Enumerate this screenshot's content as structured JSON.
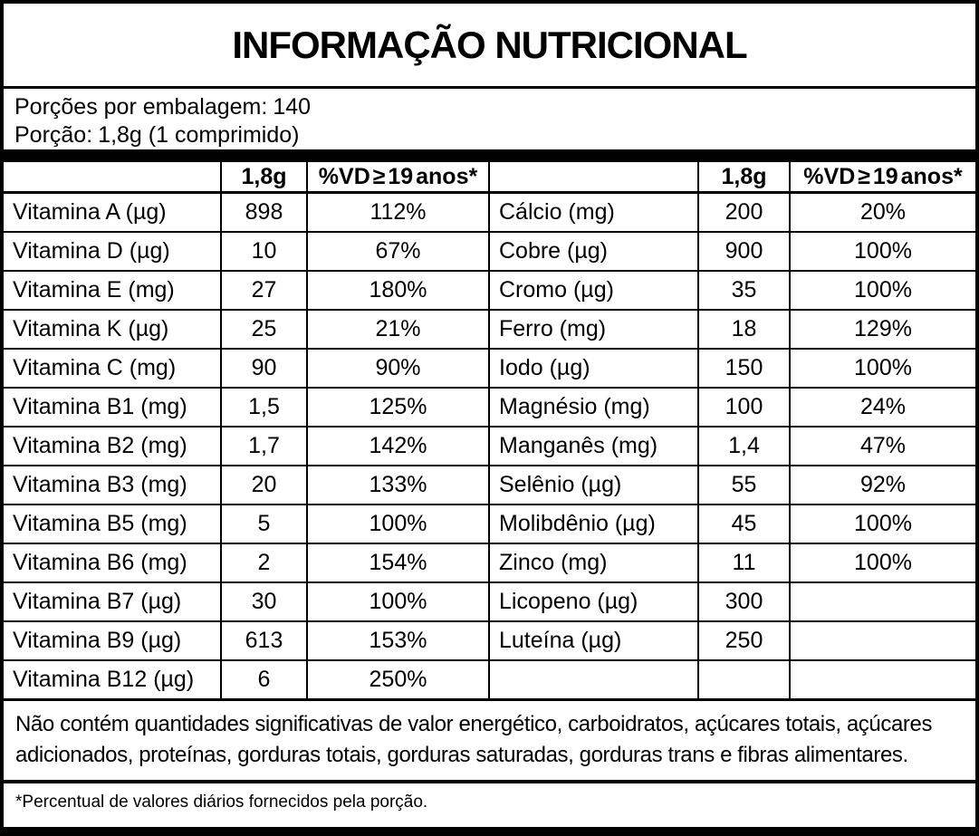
{
  "label": {
    "title": "INFORMAÇÃO NUTRICIONAL",
    "servings": {
      "label": "Porções por embalagem:",
      "value": "140"
    },
    "portion": {
      "label": "Porção:",
      "value": "1,8g (1 comprimido)"
    },
    "colors": {
      "ink": "#000000",
      "paper": "#ffffff"
    },
    "table": {
      "amount_header": "1,8g",
      "dv_header": "%VD ≥ 19 anos*",
      "left_rows": [
        {
          "name": "Vitamina A (µg)",
          "amount": "898",
          "dv": "112%"
        },
        {
          "name": "Vitamina D (µg)",
          "amount": "10",
          "dv": "67%"
        },
        {
          "name": "Vitamina E (mg)",
          "amount": "27",
          "dv": "180%"
        },
        {
          "name": "Vitamina K (µg)",
          "amount": "25",
          "dv": "21%"
        },
        {
          "name": "Vitamina C (mg)",
          "amount": "90",
          "dv": "90%"
        },
        {
          "name": "Vitamina B1 (mg)",
          "amount": "1,5",
          "dv": "125%"
        },
        {
          "name": "Vitamina B2 (mg)",
          "amount": "1,7",
          "dv": "142%"
        },
        {
          "name": "Vitamina B3 (mg)",
          "amount": "20",
          "dv": "133%"
        },
        {
          "name": "Vitamina B5 (mg)",
          "amount": "5",
          "dv": "100%"
        },
        {
          "name": "Vitamina B6 (mg)",
          "amount": "2",
          "dv": "154%"
        },
        {
          "name": "Vitamina B7 (µg)",
          "amount": "30",
          "dv": "100%"
        },
        {
          "name": "Vitamina B9 (µg)",
          "amount": "613",
          "dv": "153%"
        },
        {
          "name": "Vitamina B12 (µg)",
          "amount": "6",
          "dv": "250%"
        }
      ],
      "right_rows": [
        {
          "name": "Cálcio (mg)",
          "amount": "200",
          "dv": "20%"
        },
        {
          "name": "Cobre (µg)",
          "amount": "900",
          "dv": "100%"
        },
        {
          "name": "Cromo (µg)",
          "amount": "35",
          "dv": "100%"
        },
        {
          "name": "Ferro (mg)",
          "amount": "18",
          "dv": "129%"
        },
        {
          "name": "Iodo (µg)",
          "amount": "150",
          "dv": "100%"
        },
        {
          "name": "Magnésio (mg)",
          "amount": "100",
          "dv": "24%"
        },
        {
          "name": "Manganês (mg)",
          "amount": "1,4",
          "dv": "47%"
        },
        {
          "name": "Selênio (µg)",
          "amount": "55",
          "dv": "92%"
        },
        {
          "name": "Molibdênio (µg)",
          "amount": "45",
          "dv": "100%"
        },
        {
          "name": "Zinco (mg)",
          "amount": "11",
          "dv": "100%"
        },
        {
          "name": "Licopeno (µg)",
          "amount": "300",
          "dv": ""
        },
        {
          "name": "Luteína (µg)",
          "amount": "250",
          "dv": ""
        },
        {
          "name": "",
          "amount": "",
          "dv": ""
        }
      ]
    },
    "no_significant_amounts": "Não contém quantidades significativas de valor energético, carboidratos, açúcares totais, açúcares adicionados, proteínas, gorduras totais, gorduras saturadas, gorduras trans e fibras alimentares.",
    "footnote": "*Percentual de valores diários fornecidos pela porção."
  }
}
